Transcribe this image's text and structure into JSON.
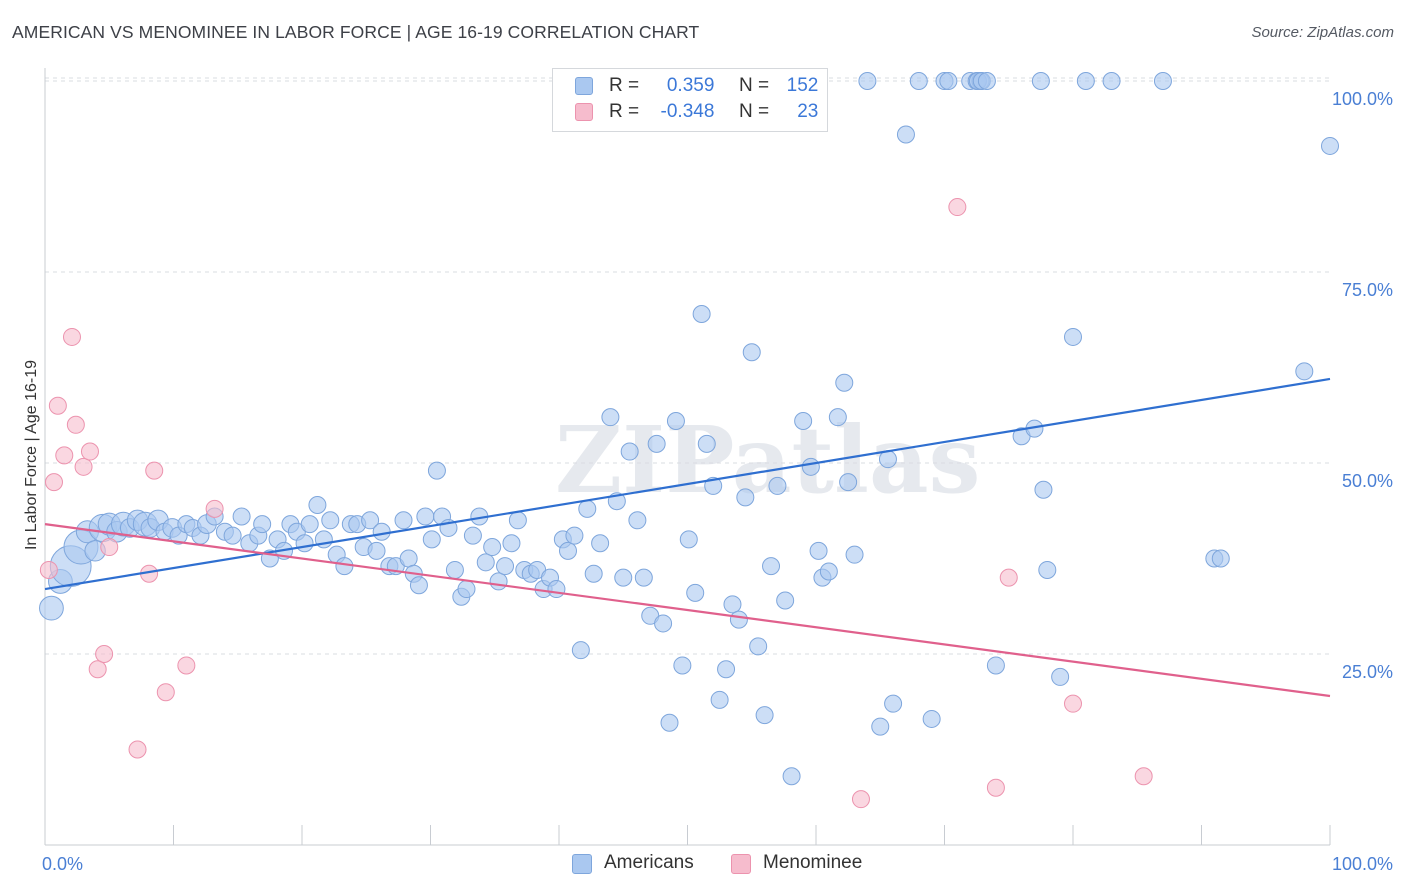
{
  "header": {
    "title": "AMERICAN VS MENOMINEE IN LABOR FORCE | AGE 16-19 CORRELATION CHART",
    "source": "Source: ZipAtlas.com"
  },
  "watermark": "ZIPatlas",
  "legend": {
    "rows": [
      {
        "r_label": "R =",
        "r_value": "0.359",
        "n_label": "N =",
        "n_value": "152"
      },
      {
        "r_label": "R =",
        "r_value": "-0.348",
        "n_label": "N =",
        "n_value": "23"
      }
    ]
  },
  "bottom_legend": {
    "items": [
      {
        "label": "Americans"
      },
      {
        "label": "Menominee"
      }
    ]
  },
  "colors": {
    "americans_fill": "#aac8f0",
    "americans_stroke": "#7ea6dc",
    "americans_line": "#2f6fd0",
    "menominee_fill": "#f6bccd",
    "menominee_stroke": "#ec93ae",
    "menominee_line": "#e0608c",
    "tick_label": "#4a7fd4",
    "grid": "#d9dce1"
  },
  "chart_data": {
    "type": "scatter",
    "title": "AMERICAN VS MENOMINEE IN LABOR FORCE | AGE 16-19 CORRELATION CHART",
    "xlabel": "",
    "ylabel": "In Labor Force | Age 16-19",
    "xlim": [
      0,
      100
    ],
    "ylim": [
      0,
      102
    ],
    "x_tick_labels": [
      {
        "value": 0,
        "label": "0.0%"
      },
      {
        "value": 100,
        "label": "100.0%"
      }
    ],
    "y_tick_labels": [
      {
        "value": 25,
        "label": "25.0%"
      },
      {
        "value": 50,
        "label": "50.0%"
      },
      {
        "value": 75,
        "label": "75.0%"
      },
      {
        "value": 100,
        "label": "100.0%"
      }
    ],
    "grid": true,
    "legend_position": "top-center",
    "series": [
      {
        "name": "Americans",
        "r": 0.359,
        "n": 152,
        "trend": {
          "x": [
            0,
            100
          ],
          "y": [
            33.5,
            61.0
          ]
        },
        "points": [
          {
            "x": 0.5,
            "y": 31,
            "s": 1.4
          },
          {
            "x": 1.2,
            "y": 34.5,
            "s": 1.4
          },
          {
            "x": 2.0,
            "y": 36.5,
            "s": 2.4
          },
          {
            "x": 2.8,
            "y": 39.0,
            "s": 2.0
          },
          {
            "x": 3.3,
            "y": 41.0,
            "s": 1.3
          },
          {
            "x": 3.9,
            "y": 38.5,
            "s": 1.2
          },
          {
            "x": 4.5,
            "y": 41.5,
            "s": 1.6
          },
          {
            "x": 5.0,
            "y": 42.0,
            "s": 1.3
          },
          {
            "x": 5.6,
            "y": 41.0,
            "s": 1.2
          },
          {
            "x": 6.1,
            "y": 42.0,
            "s": 1.4
          },
          {
            "x": 6.6,
            "y": 41.5,
            "s": 1.1
          },
          {
            "x": 7.2,
            "y": 42.5,
            "s": 1.2
          },
          {
            "x": 7.8,
            "y": 42.0,
            "s": 1.4
          },
          {
            "x": 8.2,
            "y": 41.5,
            "s": 1.1
          },
          {
            "x": 8.8,
            "y": 42.5,
            "s": 1.2
          },
          {
            "x": 9.3,
            "y": 41.0,
            "s": 1.0
          },
          {
            "x": 9.9,
            "y": 41.5,
            "s": 1.1
          },
          {
            "x": 10.4,
            "y": 40.5,
            "s": 1.0
          },
          {
            "x": 11.0,
            "y": 42.0,
            "s": 1.0
          },
          {
            "x": 11.5,
            "y": 41.5,
            "s": 1.0
          },
          {
            "x": 12.1,
            "y": 40.5,
            "s": 1.0
          },
          {
            "x": 12.6,
            "y": 42.0,
            "s": 1.1
          },
          {
            "x": 13.2,
            "y": 43.0,
            "s": 1.0
          },
          {
            "x": 14.0,
            "y": 41.0,
            "s": 1.0
          },
          {
            "x": 14.6,
            "y": 40.5,
            "s": 1.0
          },
          {
            "x": 15.3,
            "y": 43.0,
            "s": 1.0
          },
          {
            "x": 15.9,
            "y": 39.5,
            "s": 1.0
          },
          {
            "x": 16.6,
            "y": 40.5,
            "s": 1.0
          },
          {
            "x": 16.9,
            "y": 42.0,
            "s": 1.0
          },
          {
            "x": 17.5,
            "y": 37.5,
            "s": 1.0
          },
          {
            "x": 18.1,
            "y": 40.0,
            "s": 1.0
          },
          {
            "x": 18.6,
            "y": 38.5,
            "s": 1.0
          },
          {
            "x": 19.1,
            "y": 42.0,
            "s": 1.0
          },
          {
            "x": 19.6,
            "y": 41.0,
            "s": 1.0
          },
          {
            "x": 20.2,
            "y": 39.5,
            "s": 1.0
          },
          {
            "x": 20.6,
            "y": 42.0,
            "s": 1.0
          },
          {
            "x": 21.2,
            "y": 44.5,
            "s": 1.0
          },
          {
            "x": 21.7,
            "y": 40.0,
            "s": 1.0
          },
          {
            "x": 22.2,
            "y": 42.5,
            "s": 1.0
          },
          {
            "x": 22.7,
            "y": 38.0,
            "s": 1.0
          },
          {
            "x": 23.3,
            "y": 36.5,
            "s": 1.0
          },
          {
            "x": 23.8,
            "y": 42.0,
            "s": 1.0
          },
          {
            "x": 24.3,
            "y": 42.0,
            "s": 1.0
          },
          {
            "x": 24.8,
            "y": 39.0,
            "s": 1.0
          },
          {
            "x": 25.3,
            "y": 42.5,
            "s": 1.0
          },
          {
            "x": 25.8,
            "y": 38.5,
            "s": 1.0
          },
          {
            "x": 26.2,
            "y": 41.0,
            "s": 1.0
          },
          {
            "x": 26.8,
            "y": 36.5,
            "s": 1.0
          },
          {
            "x": 27.3,
            "y": 36.5,
            "s": 1.0
          },
          {
            "x": 27.9,
            "y": 42.5,
            "s": 1.0
          },
          {
            "x": 28.3,
            "y": 37.5,
            "s": 1.0
          },
          {
            "x": 28.7,
            "y": 35.5,
            "s": 1.0
          },
          {
            "x": 29.1,
            "y": 34.0,
            "s": 1.0
          },
          {
            "x": 29.6,
            "y": 43.0,
            "s": 1.0
          },
          {
            "x": 30.1,
            "y": 40.0,
            "s": 1.0
          },
          {
            "x": 30.5,
            "y": 49.0,
            "s": 1.0
          },
          {
            "x": 30.9,
            "y": 43.0,
            "s": 1.0
          },
          {
            "x": 31.4,
            "y": 41.5,
            "s": 1.0
          },
          {
            "x": 31.9,
            "y": 36.0,
            "s": 1.0
          },
          {
            "x": 32.4,
            "y": 32.5,
            "s": 1.0
          },
          {
            "x": 32.8,
            "y": 33.5,
            "s": 1.0
          },
          {
            "x": 33.3,
            "y": 40.5,
            "s": 1.0
          },
          {
            "x": 33.8,
            "y": 43.0,
            "s": 1.0
          },
          {
            "x": 34.3,
            "y": 37.0,
            "s": 1.0
          },
          {
            "x": 34.8,
            "y": 39.0,
            "s": 1.0
          },
          {
            "x": 35.3,
            "y": 34.5,
            "s": 1.0
          },
          {
            "x": 35.8,
            "y": 36.5,
            "s": 1.0
          },
          {
            "x": 36.3,
            "y": 39.5,
            "s": 1.0
          },
          {
            "x": 36.8,
            "y": 42.5,
            "s": 1.0
          },
          {
            "x": 37.3,
            "y": 36.0,
            "s": 1.0
          },
          {
            "x": 37.8,
            "y": 35.5,
            "s": 1.0
          },
          {
            "x": 38.3,
            "y": 36.0,
            "s": 1.0
          },
          {
            "x": 38.8,
            "y": 33.5,
            "s": 1.0
          },
          {
            "x": 39.3,
            "y": 35.0,
            "s": 1.0
          },
          {
            "x": 39.8,
            "y": 33.5,
            "s": 1.0
          },
          {
            "x": 40.3,
            "y": 40.0,
            "s": 1.0
          },
          {
            "x": 40.7,
            "y": 38.5,
            "s": 1.0
          },
          {
            "x": 41.2,
            "y": 40.5,
            "s": 1.0
          },
          {
            "x": 41.7,
            "y": 25.5,
            "s": 1.0
          },
          {
            "x": 42.2,
            "y": 44.0,
            "s": 1.0
          },
          {
            "x": 42.7,
            "y": 35.5,
            "s": 1.0
          },
          {
            "x": 43.2,
            "y": 39.5,
            "s": 1.0
          },
          {
            "x": 44.0,
            "y": 56.0,
            "s": 1.0
          },
          {
            "x": 44.5,
            "y": 45.0,
            "s": 1.0
          },
          {
            "x": 45.0,
            "y": 35.0,
            "s": 1.0
          },
          {
            "x": 45.5,
            "y": 51.5,
            "s": 1.0
          },
          {
            "x": 46.1,
            "y": 42.5,
            "s": 1.0
          },
          {
            "x": 46.6,
            "y": 35.0,
            "s": 1.0
          },
          {
            "x": 47.1,
            "y": 30.0,
            "s": 1.0
          },
          {
            "x": 47.6,
            "y": 52.5,
            "s": 1.0
          },
          {
            "x": 48.1,
            "y": 29.0,
            "s": 1.0
          },
          {
            "x": 48.6,
            "y": 16.0,
            "s": 1.0
          },
          {
            "x": 49.1,
            "y": 55.5,
            "s": 1.0
          },
          {
            "x": 49.6,
            "y": 23.5,
            "s": 1.0
          },
          {
            "x": 50.1,
            "y": 40.0,
            "s": 1.0
          },
          {
            "x": 50.6,
            "y": 33.0,
            "s": 1.0
          },
          {
            "x": 51.1,
            "y": 69.5,
            "s": 1.0
          },
          {
            "x": 51.5,
            "y": 52.5,
            "s": 1.0
          },
          {
            "x": 52.0,
            "y": 47.0,
            "s": 1.0
          },
          {
            "x": 52.5,
            "y": 19.0,
            "s": 1.0
          },
          {
            "x": 53.0,
            "y": 23.0,
            "s": 1.0
          },
          {
            "x": 53.5,
            "y": 31.5,
            "s": 1.0
          },
          {
            "x": 54.0,
            "y": 29.5,
            "s": 1.0
          },
          {
            "x": 54.5,
            "y": 45.5,
            "s": 1.0
          },
          {
            "x": 55.0,
            "y": 64.5,
            "s": 1.0
          },
          {
            "x": 55.5,
            "y": 26.0,
            "s": 1.0
          },
          {
            "x": 56.0,
            "y": 17.0,
            "s": 1.0
          },
          {
            "x": 56.5,
            "y": 36.5,
            "s": 1.0
          },
          {
            "x": 57.0,
            "y": 47.0,
            "s": 1.0
          },
          {
            "x": 57.6,
            "y": 32.0,
            "s": 1.0
          },
          {
            "x": 58.1,
            "y": 9.0,
            "s": 1.0
          },
          {
            "x": 59.0,
            "y": 55.5,
            "s": 1.0
          },
          {
            "x": 59.6,
            "y": 49.5,
            "s": 1.0
          },
          {
            "x": 60.2,
            "y": 38.5,
            "s": 1.0
          },
          {
            "x": 60.5,
            "y": 35.0,
            "s": 1.0
          },
          {
            "x": 61.0,
            "y": 35.8,
            "s": 1.0
          },
          {
            "x": 61.7,
            "y": 56.0,
            "s": 1.0
          },
          {
            "x": 62.2,
            "y": 60.5,
            "s": 1.0
          },
          {
            "x": 62.5,
            "y": 47.5,
            "s": 1.0
          },
          {
            "x": 63.0,
            "y": 38.0,
            "s": 1.0
          },
          {
            "x": 64.0,
            "y": 100.0,
            "s": 1.0
          },
          {
            "x": 65.0,
            "y": 15.5,
            "s": 1.0
          },
          {
            "x": 65.6,
            "y": 50.5,
            "s": 1.0
          },
          {
            "x": 66.0,
            "y": 18.5,
            "s": 1.0
          },
          {
            "x": 67.0,
            "y": 93.0,
            "s": 1.0
          },
          {
            "x": 68.0,
            "y": 100.0,
            "s": 1.0
          },
          {
            "x": 69.0,
            "y": 16.5,
            "s": 1.0
          },
          {
            "x": 70.0,
            "y": 100.0,
            "s": 1.0
          },
          {
            "x": 70.3,
            "y": 100.0,
            "s": 1.0
          },
          {
            "x": 72.0,
            "y": 100.0,
            "s": 1.0
          },
          {
            "x": 72.5,
            "y": 100.0,
            "s": 1.0
          },
          {
            "x": 72.8,
            "y": 100.0,
            "s": 1.0
          },
          {
            "x": 72.6,
            "y": 100.0,
            "s": 1.0
          },
          {
            "x": 72.9,
            "y": 100.0,
            "s": 1.0
          },
          {
            "x": 73.3,
            "y": 100.0,
            "s": 1.0
          },
          {
            "x": 74.0,
            "y": 23.5,
            "s": 1.0
          },
          {
            "x": 76.0,
            "y": 53.5,
            "s": 1.0
          },
          {
            "x": 77.0,
            "y": 54.5,
            "s": 1.0
          },
          {
            "x": 77.7,
            "y": 46.5,
            "s": 1.0
          },
          {
            "x": 78.0,
            "y": 36.0,
            "s": 1.0
          },
          {
            "x": 79.0,
            "y": 22.0,
            "s": 1.0
          },
          {
            "x": 80.0,
            "y": 66.5,
            "s": 1.0
          },
          {
            "x": 83.0,
            "y": 100.0,
            "s": 1.0
          },
          {
            "x": 87.0,
            "y": 100.0,
            "s": 1.0
          },
          {
            "x": 91.0,
            "y": 37.5,
            "s": 1.0
          },
          {
            "x": 91.5,
            "y": 37.5,
            "s": 1.0
          },
          {
            "x": 98.0,
            "y": 62.0,
            "s": 1.0
          },
          {
            "x": 100.0,
            "y": 91.5,
            "s": 1.0
          },
          {
            "x": 59.0,
            "y": 100.0,
            "s": 1.0
          },
          {
            "x": 57.7,
            "y": 100.0,
            "s": 1.0
          },
          {
            "x": 77.5,
            "y": 100.0,
            "s": 1.0
          },
          {
            "x": 81.0,
            "y": 100.0,
            "s": 1.0
          }
        ]
      },
      {
        "name": "Menominee",
        "r": -0.348,
        "n": 23,
        "trend": {
          "x": [
            0,
            100
          ],
          "y": [
            42.0,
            19.5
          ]
        },
        "points": [
          {
            "x": 0.3,
            "y": 36.0,
            "s": 1.0
          },
          {
            "x": 0.7,
            "y": 47.5,
            "s": 1.0
          },
          {
            "x": 1.0,
            "y": 57.5,
            "s": 1.0
          },
          {
            "x": 1.5,
            "y": 51.0,
            "s": 1.0
          },
          {
            "x": 2.1,
            "y": 66.5,
            "s": 1.0
          },
          {
            "x": 2.4,
            "y": 55.0,
            "s": 1.0
          },
          {
            "x": 3.0,
            "y": 49.5,
            "s": 1.0
          },
          {
            "x": 3.5,
            "y": 51.5,
            "s": 1.0
          },
          {
            "x": 4.1,
            "y": 23.0,
            "s": 1.0
          },
          {
            "x": 4.6,
            "y": 25.0,
            "s": 1.0
          },
          {
            "x": 5.0,
            "y": 39.0,
            "s": 1.0
          },
          {
            "x": 7.2,
            "y": 12.5,
            "s": 1.0
          },
          {
            "x": 8.1,
            "y": 35.5,
            "s": 1.0
          },
          {
            "x": 8.5,
            "y": 49.0,
            "s": 1.0
          },
          {
            "x": 9.4,
            "y": 20.0,
            "s": 1.0
          },
          {
            "x": 11.0,
            "y": 23.5,
            "s": 1.0
          },
          {
            "x": 13.2,
            "y": 44.0,
            "s": 1.0
          },
          {
            "x": 63.5,
            "y": 6.0,
            "s": 1.0
          },
          {
            "x": 71.0,
            "y": 83.5,
            "s": 1.0
          },
          {
            "x": 74.0,
            "y": 7.5,
            "s": 1.0
          },
          {
            "x": 75.0,
            "y": 35.0,
            "s": 1.0
          },
          {
            "x": 80.0,
            "y": 18.5,
            "s": 1.0
          },
          {
            "x": 85.5,
            "y": 9.0,
            "s": 1.0
          }
        ]
      }
    ]
  }
}
